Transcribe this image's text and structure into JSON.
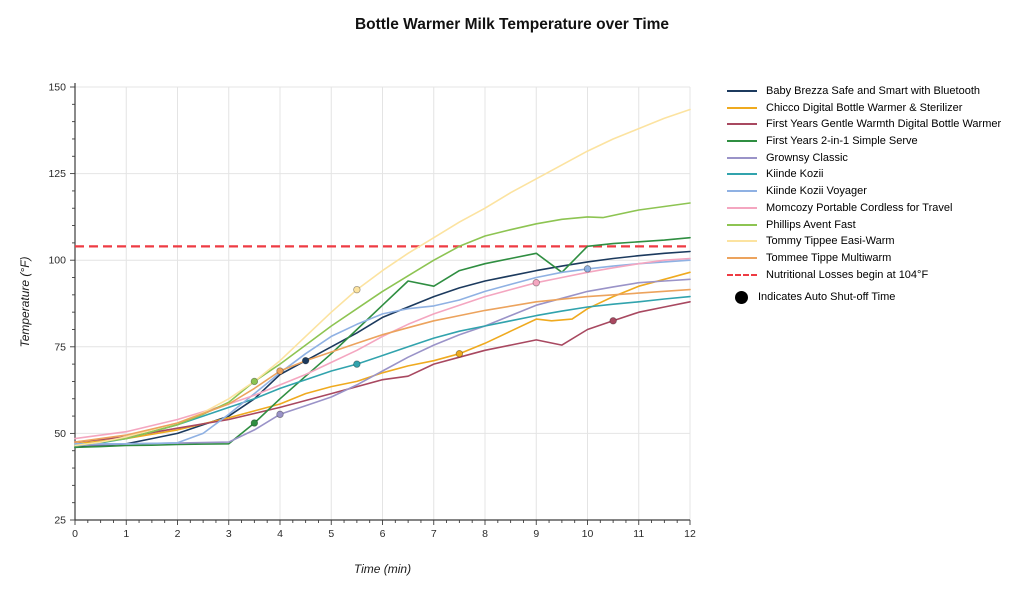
{
  "title": "Bottle Warmer Milk Temperature over Time",
  "chart_data": {
    "type": "line",
    "xlabel": "Time (min)",
    "ylabel": "Temperature (°F)",
    "xlim": [
      0,
      12
    ],
    "ylim": [
      25,
      150
    ],
    "x_ticks": [
      0,
      1,
      2,
      3,
      4,
      5,
      6,
      7,
      8,
      9,
      10,
      11,
      12
    ],
    "y_ticks": [
      25,
      50,
      75,
      100,
      125,
      150
    ],
    "grid": true,
    "legend_position": "right",
    "background": "#ffffff",
    "gridline_color": "#e4e4e4",
    "axis_color": "#3c3c3c",
    "reference_line": {
      "label": "Nutritional Losses begin at 104°F",
      "y": 104,
      "color": "#ee3b43",
      "style": "dashed"
    },
    "marker_note": {
      "label": "Indicates Auto Shut-off Time",
      "symbol": "filled-circle",
      "color": "#000000"
    },
    "series": [
      {
        "name": "Baby Brezza Safe and Smart with Bluetooth",
        "color": "#1c3a5e",
        "x": [
          0,
          0.5,
          1,
          1.5,
          2,
          2.5,
          3,
          3.5,
          4,
          4.5,
          5,
          5.5,
          6,
          6.5,
          7,
          7.5,
          8,
          8.5,
          9,
          9.5,
          10,
          10.5,
          11,
          11.5,
          12
        ],
        "y": [
          46,
          46.5,
          47,
          48.5,
          50,
          52.5,
          55,
          60,
          67,
          71,
          75,
          79,
          83.5,
          86.5,
          89.5,
          92,
          94,
          95.5,
          97,
          98.3,
          99.5,
          100.5,
          101.3,
          102,
          102.5
        ],
        "shutoff": [
          4.5,
          71
        ]
      },
      {
        "name": "Chicco Digital Bottle Warmer & Sterilizer",
        "color": "#efaa1f",
        "x": [
          0,
          1,
          2,
          3,
          3.5,
          4,
          4.5,
          5,
          5.5,
          6,
          6.5,
          7,
          7.5,
          8,
          8.5,
          9,
          9.3,
          9.7,
          10,
          10.5,
          11,
          11.5,
          12
        ],
        "y": [
          47,
          48.5,
          51,
          54.5,
          56.5,
          58.5,
          61.5,
          63.5,
          65,
          67.5,
          69.5,
          71,
          73,
          76,
          79.5,
          83,
          82.5,
          83,
          86,
          89.5,
          92.5,
          94.5,
          96.5
        ],
        "shutoff": [
          7.5,
          73
        ]
      },
      {
        "name": "First Years Gentle Warmth Digital Bottle Warmer",
        "color": "#a84860",
        "x": [
          0,
          1,
          2,
          3,
          4,
          5,
          6,
          6.5,
          7,
          7.5,
          8,
          8.5,
          9,
          9.5,
          10,
          10.5,
          11,
          11.5,
          12
        ],
        "y": [
          47.5,
          49,
          51.5,
          54,
          57.5,
          61.5,
          65.5,
          66.5,
          70,
          72,
          74,
          75.5,
          77,
          75.5,
          80,
          82.5,
          85,
          86.5,
          88
        ],
        "shutoff": [
          10.5,
          82.5
        ]
      },
      {
        "name": "First Years 2-in-1 Simple Serve",
        "color": "#2f8e41",
        "x": [
          0,
          0.5,
          1,
          1.5,
          2,
          2.5,
          3,
          3.5,
          4,
          4.5,
          5,
          5.5,
          6,
          6.5,
          7,
          7.5,
          8,
          8.5,
          9,
          9.5,
          10,
          10.5,
          11,
          11.5,
          12
        ],
        "y": [
          46,
          46.2,
          46.5,
          46.6,
          46.8,
          46.9,
          47,
          53,
          60,
          66.5,
          73,
          80,
          87,
          94,
          92.5,
          97,
          99,
          100.5,
          102,
          96.5,
          104,
          104.8,
          105.3,
          105.8,
          106.5
        ],
        "shutoff": [
          3.5,
          53
        ]
      },
      {
        "name": "Grownsy Classic",
        "color": "#9a93c8",
        "x": [
          0,
          1,
          2,
          3,
          3.5,
          4,
          4.5,
          5,
          5.5,
          6,
          6.5,
          7,
          7.5,
          8,
          8.5,
          9,
          9.5,
          10,
          10.5,
          11,
          11.5,
          12
        ],
        "y": [
          46.5,
          47,
          47.2,
          47.5,
          51,
          55.5,
          58,
          60.5,
          64,
          68,
          72,
          75.5,
          78.5,
          81,
          84,
          87,
          89,
          91,
          92.3,
          93.5,
          94,
          94.5
        ],
        "shutoff": [
          4,
          55.5
        ]
      },
      {
        "name": "Kiinde Kozii",
        "color": "#31a3ad",
        "x": [
          0,
          0.5,
          1,
          1.5,
          2,
          2.5,
          3,
          3.5,
          4,
          4.5,
          5,
          5.5,
          6,
          6.5,
          7,
          7.5,
          8,
          8.5,
          9,
          9.5,
          10,
          10.5,
          11,
          11.5,
          12
        ],
        "y": [
          46.5,
          47.3,
          48.5,
          50.5,
          52.5,
          55,
          57.5,
          60,
          63,
          65.5,
          68,
          70,
          72.5,
          75,
          77.5,
          79.5,
          81,
          82.5,
          84,
          85.3,
          86.5,
          87.3,
          88,
          88.8,
          89.5
        ],
        "shutoff": [
          5.5,
          70
        ]
      },
      {
        "name": "Kiinde Kozii Voyager",
        "color": "#8fb1e3",
        "x": [
          0,
          0.5,
          1,
          1.5,
          2,
          2.5,
          3,
          3.5,
          4,
          4.5,
          5,
          5.5,
          6,
          6.5,
          7,
          7.5,
          8,
          8.5,
          9,
          9.5,
          10,
          10.5,
          11,
          11.5,
          12
        ],
        "y": [
          47,
          47,
          47,
          47.1,
          47.3,
          50,
          55.5,
          61.5,
          67.5,
          73,
          78,
          81.5,
          84.5,
          86,
          86.8,
          88.5,
          91,
          93,
          95,
          96.5,
          97.5,
          98.3,
          99,
          99.5,
          100
        ],
        "shutoff": [
          10,
          97.5
        ]
      },
      {
        "name": "Momcozy Portable Cordless for Travel",
        "color": "#f4a6c0",
        "x": [
          0,
          1,
          2,
          3,
          3.5,
          4,
          4.5,
          5,
          5.5,
          6,
          6.5,
          7,
          7.5,
          8,
          8.5,
          9,
          9.5,
          10,
          10.5,
          11,
          11.5,
          12
        ],
        "y": [
          48.5,
          50.5,
          54,
          58.5,
          61,
          64,
          67,
          70.5,
          74,
          78,
          81.5,
          84.5,
          87,
          89.5,
          91.5,
          93.5,
          95,
          96.5,
          97.8,
          99,
          100,
          100.5
        ],
        "shutoff": [
          9,
          93.5
        ]
      },
      {
        "name": "Phillips Avent Fast",
        "color": "#8dc452",
        "x": [
          0,
          0.5,
          1,
          1.5,
          2,
          2.5,
          3,
          3.5,
          4,
          4.5,
          5,
          5.5,
          6,
          6.5,
          7,
          7.5,
          8,
          8.5,
          9,
          9.5,
          10,
          10.3,
          11,
          11.5,
          12
        ],
        "y": [
          46.5,
          47.5,
          48.5,
          50.5,
          52.5,
          55.5,
          59,
          65,
          70,
          75.5,
          81,
          86,
          91,
          95.5,
          100,
          104,
          107,
          108.8,
          110.5,
          111.8,
          112.5,
          112.3,
          114.5,
          115.5,
          116.5
        ],
        "shutoff": [
          3.5,
          65
        ]
      },
      {
        "name": "Tommy Tippee Easi-Warm",
        "color": "#fce3a0",
        "x": [
          0,
          0.5,
          1,
          1.5,
          2,
          2.5,
          3,
          3.5,
          4,
          4.5,
          5,
          5.5,
          6,
          6.5,
          7,
          7.5,
          8,
          8.5,
          9,
          9.5,
          10,
          10.5,
          11,
          11.5,
          12
        ],
        "y": [
          46.5,
          47.5,
          49,
          51,
          53,
          56,
          60,
          65,
          71,
          78,
          85,
          91.5,
          97,
          102,
          106.5,
          111,
          115,
          119.5,
          123.5,
          127.5,
          131.5,
          135,
          138,
          141,
          143.5
        ],
        "shutoff": [
          5.5,
          91.5
        ]
      },
      {
        "name": "Tommee Tippe Multiwarm",
        "color": "#eca35d",
        "x": [
          0,
          1,
          2,
          3,
          3.5,
          4,
          4.5,
          5,
          5.5,
          6,
          6.5,
          7,
          7.5,
          8,
          9,
          10,
          11,
          12
        ],
        "y": [
          47.5,
          49.5,
          53,
          58.5,
          63,
          68,
          71,
          73.5,
          76,
          78.5,
          80.5,
          82.5,
          84,
          85.5,
          88,
          89.5,
          90.5,
          91.5
        ],
        "shutoff": [
          4,
          68
        ]
      }
    ]
  }
}
